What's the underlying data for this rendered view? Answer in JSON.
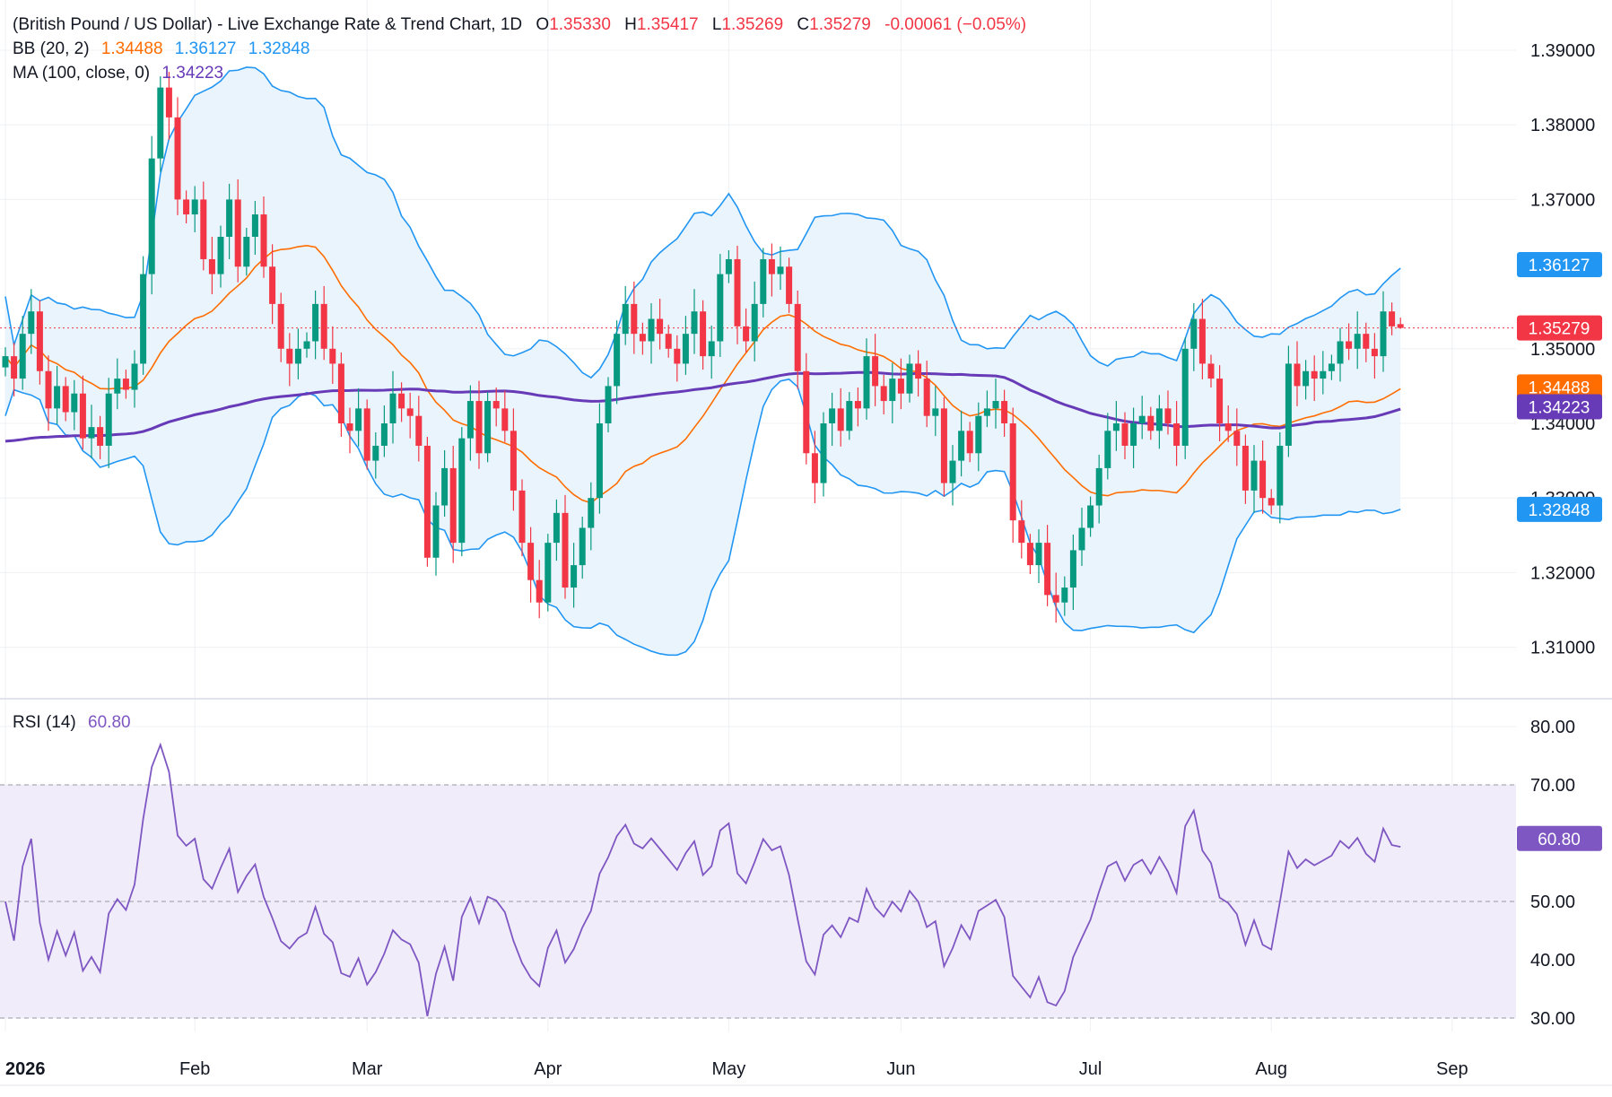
{
  "colors": {
    "up": "#089981",
    "down": "#f23645",
    "bb_band": "#2196f3",
    "bb_fill": "#eaf4fc",
    "bb_basis": "#ff6d00",
    "ma": "#673ab7",
    "rsi_line": "#7e57c2",
    "rsi_fill": "#f1ecfa",
    "grid": "#eef0f3",
    "text": "#131722",
    "last_price": "#f23645"
  },
  "header": {
    "symbol": "(British Pound / US Dollar) - Live Exchange Rate & Trend Chart, 1D",
    "o_label": "O",
    "o_value": "1.35330",
    "h_label": "H",
    "h_value": "1.35417",
    "l_label": "L",
    "l_value": "1.35269",
    "c_label": "C",
    "c_value": "1.35279",
    "change": "-0.00061 (−0.05%)",
    "bb_label": "BB (20, 2)",
    "bb_basis": "1.34488",
    "bb_upper": "1.36127",
    "bb_lower": "1.32848",
    "ma_label": "MA (100, close, 0)",
    "ma_value": "1.34223",
    "rsi_label": "RSI (14)",
    "rsi_value": "60.80"
  },
  "tags": {
    "bb_upper": "1.36127",
    "last_price": "1.35279",
    "bb_basis": "1.34488",
    "ma": "1.34223",
    "bb_lower": "1.32848",
    "rsi": "60.80"
  },
  "chart_data": [
    {
      "type": "candlestick",
      "symbol": "GBP/USD",
      "timeframe": "1D",
      "yticks": [
        "1.39000",
        "1.38000",
        "1.37000",
        "1.35000",
        "1.34000",
        "1.33000",
        "1.32000",
        "1.31000"
      ],
      "ylim": [
        1.3085,
        1.395
      ],
      "xticks": [
        {
          "label": "2026",
          "index": 0
        },
        {
          "label": "Feb",
          "index": 22
        },
        {
          "label": "Mar",
          "index": 42
        },
        {
          "label": "Apr",
          "index": 63
        },
        {
          "label": "May",
          "index": 84
        },
        {
          "label": "Jun",
          "index": 104
        },
        {
          "label": "Jul",
          "index": 126
        },
        {
          "label": "Aug",
          "index": 147
        },
        {
          "label": "Sep",
          "index": 168
        }
      ],
      "last_price": 1.35279,
      "close": [
        1.349,
        1.346,
        1.352,
        1.355,
        1.347,
        1.342,
        1.345,
        1.3415,
        1.344,
        1.338,
        1.3395,
        1.337,
        1.344,
        1.346,
        1.3445,
        1.348,
        1.36,
        1.3755,
        1.385,
        1.381,
        1.37,
        1.368,
        1.37,
        1.362,
        1.36,
        1.365,
        1.37,
        1.361,
        1.365,
        1.368,
        1.361,
        1.356,
        1.35,
        1.348,
        1.35,
        1.351,
        1.356,
        1.35,
        1.348,
        1.34,
        1.339,
        1.342,
        1.335,
        1.337,
        1.34,
        1.344,
        1.342,
        1.341,
        1.337,
        1.322,
        1.329,
        1.334,
        1.324,
        1.338,
        1.343,
        1.336,
        1.343,
        1.342,
        1.339,
        1.331,
        1.324,
        1.319,
        1.316,
        1.324,
        1.328,
        1.318,
        1.321,
        1.326,
        1.33,
        1.34,
        1.345,
        1.352,
        1.356,
        1.352,
        1.351,
        1.354,
        1.352,
        1.35,
        1.348,
        1.352,
        1.355,
        1.349,
        1.351,
        1.36,
        1.362,
        1.353,
        1.351,
        1.356,
        1.362,
        1.36,
        1.361,
        1.356,
        1.347,
        1.336,
        1.332,
        1.34,
        1.342,
        1.339,
        1.343,
        1.342,
        1.349,
        1.345,
        1.343,
        1.346,
        1.344,
        1.348,
        1.346,
        1.341,
        1.342,
        1.332,
        1.335,
        1.339,
        1.336,
        1.341,
        1.342,
        1.343,
        1.34,
        1.327,
        1.324,
        1.321,
        1.324,
        1.317,
        1.316,
        1.318,
        1.323,
        1.326,
        1.329,
        1.334,
        1.339,
        1.34,
        1.337,
        1.34,
        1.341,
        1.339,
        1.342,
        1.34,
        1.337,
        1.35,
        1.354,
        1.348,
        1.346,
        1.34,
        1.339,
        1.337,
        1.331,
        1.335,
        1.33,
        1.329,
        1.337,
        1.348,
        1.345,
        1.347,
        1.346,
        1.347,
        1.348,
        1.351,
        1.35,
        1.352,
        1.35,
        1.349,
        1.355,
        1.353,
        1.3528
      ]
    },
    {
      "type": "line",
      "name": "RSI (14)",
      "yticks": [
        "80.00",
        "70.00",
        "60.00",
        "50.00",
        "40.00",
        "30.00"
      ],
      "ylim": [
        27.5,
        82.5
      ],
      "bands": [
        30,
        50,
        70
      ],
      "last_value": 60.8
    }
  ]
}
